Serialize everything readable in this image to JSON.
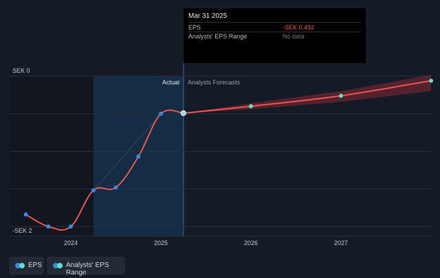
{
  "chart_data": {
    "type": "line",
    "y_axis_labels": [
      "SEK 0",
      "-SEK 2"
    ],
    "x_axis_labels": [
      "2024",
      "2025",
      "2026",
      "2027"
    ],
    "region_labels": {
      "actual": "Actual",
      "forecast": "Analysts Forecasts"
    },
    "ylim": [
      -2.1,
      0.0
    ],
    "series": [
      {
        "name": "EPS",
        "color": "#ef5350",
        "actual": [
          {
            "x": 2023.5,
            "y": -1.84
          },
          {
            "x": 2023.75,
            "y": -2.0
          },
          {
            "x": 2024.0,
            "y": -2.0
          },
          {
            "x": 2024.25,
            "y": -1.52
          },
          {
            "x": 2024.5,
            "y": -1.48
          },
          {
            "x": 2024.75,
            "y": -1.07
          },
          {
            "x": 2025.0,
            "y": -0.5
          },
          {
            "x": 2025.25,
            "y": -0.492
          }
        ],
        "forecast": [
          {
            "x": 2025.25,
            "y": -0.492
          },
          {
            "x": 2026.0,
            "y": -0.4
          },
          {
            "x": 2027.0,
            "y": -0.26
          },
          {
            "x": 2028.0,
            "y": -0.06
          }
        ]
      },
      {
        "name": "Analysts' EPS Range",
        "color": "#b02e3c",
        "upper": [
          {
            "x": 2025.25,
            "y": -0.49
          },
          {
            "x": 2026.0,
            "y": -0.36
          },
          {
            "x": 2027.0,
            "y": -0.2
          },
          {
            "x": 2028.0,
            "y": 0.02
          }
        ],
        "lower": [
          {
            "x": 2025.25,
            "y": -0.495
          },
          {
            "x": 2026.0,
            "y": -0.44
          },
          {
            "x": 2027.0,
            "y": -0.34
          },
          {
            "x": 2028.0,
            "y": -0.2
          }
        ]
      }
    ],
    "highlight_x": 2025.25
  },
  "tooltip": {
    "date": "Mar 31 2025",
    "rows": [
      {
        "label": "EPS",
        "value": "-SEK 0.492",
        "color": "#ef5350"
      },
      {
        "label": "Analysts' EPS Range",
        "value": "No data",
        "color": "#6d727b"
      }
    ]
  },
  "legend": [
    {
      "label": "EPS",
      "dot1": "#2f8fe6",
      "dot2": "#5ee2c6"
    },
    {
      "label": "Analysts' EPS Range",
      "dot1": "#2f8fe6",
      "dot2": "#5ee2c6"
    }
  ]
}
